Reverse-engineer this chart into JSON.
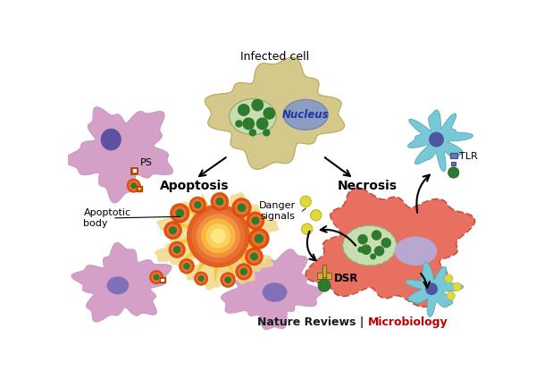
{
  "infected_cell_label": "Infected cell",
  "nucleus_label": "Nucleus",
  "apoptosis_label": "Apoptosis",
  "necrosis_label": "Necrosis",
  "ps_label": "PS",
  "apoptotic_body_label": "Apoptotic\nbody",
  "danger_signals_label": "Danger\nsignals",
  "dsr_label": "DSR",
  "tlr_label": "TLR",
  "nature_reviews": "Nature Reviews | ",
  "microbiology": "Microbiology",
  "bg_color": "#ffffff",
  "infected_cell_color": "#d4c98a",
  "nucleus_color": "#8b9dc3",
  "inclusion_color": "#c8ddb0",
  "chlamydia_color": "#2e7a2e",
  "macrophage_pink": "#d4a0c8",
  "macrophage_purple_nucleus": "#6050a0",
  "apoptotic_orange_outer": "#e05010",
  "apoptotic_orange_inner": "#f07030",
  "apoptotic_green": "#2e7a2e",
  "burst_orange": "#e06020",
  "burst_yellow": "#f5c030",
  "burst_lightyellow": "#fae070",
  "blob_tan": "#f0d888",
  "necrosis_cell_color": "#e87060",
  "necrosis_nucleus_color": "#b8a8d0",
  "immune_cell_color": "#78c8d8",
  "immune_nucleus_color": "#5055a0",
  "tlr_receptor_color": "#6878b8",
  "dsr_color": "#c8b030",
  "danger_signal_color": "#e0d840",
  "danger_signal_edge": "#c0b820"
}
